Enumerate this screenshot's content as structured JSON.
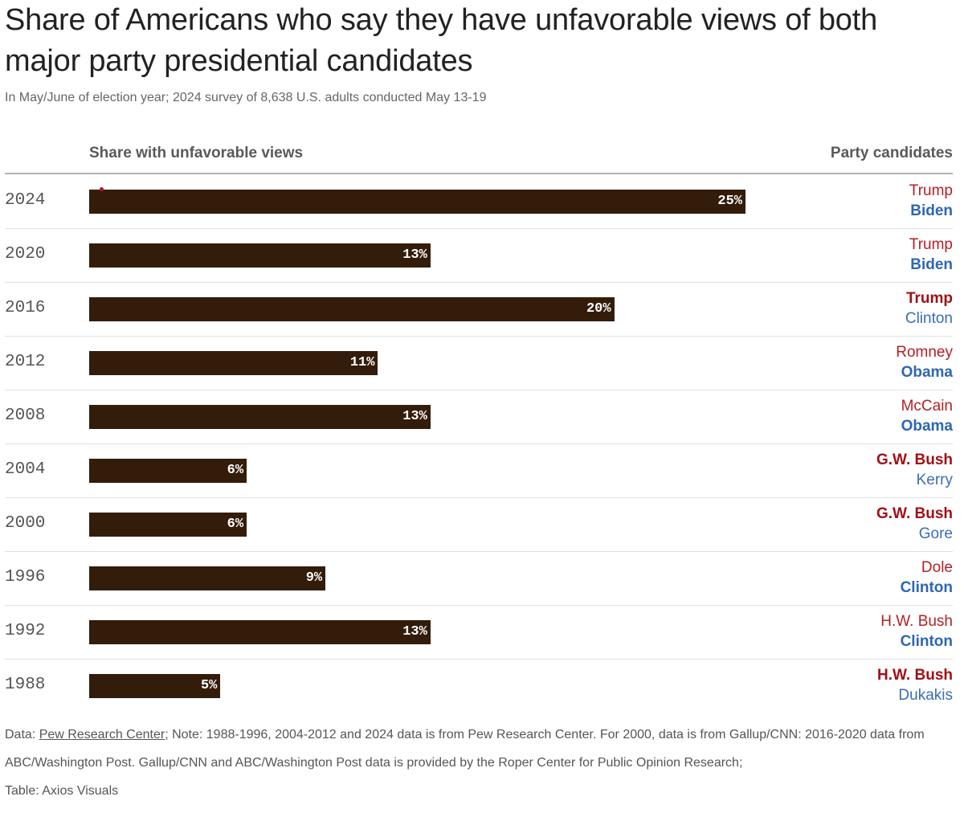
{
  "chart_data": {
    "type": "bar",
    "title": "Share of Americans who say they have unfavorable views of both major party presidential candidates",
    "subtitle": "In May/June of election year; 2024 survey of 8,638 U.S. adults conducted May 13-19",
    "xlabel": "Share with unfavorable views",
    "candidates_header": "Party candidates",
    "xlim": [
      0,
      30.6
    ],
    "categories": [
      "2024",
      "2020",
      "2016",
      "2012",
      "2008",
      "2004",
      "2000",
      "1996",
      "1992",
      "1988"
    ],
    "values": [
      25,
      13,
      20,
      11,
      13,
      6,
      6,
      9,
      13,
      5
    ],
    "labels": [
      "25%",
      "13%",
      "20%",
      "11%",
      "13%",
      "6%",
      "6%",
      "9%",
      "13%",
      "5%"
    ],
    "candidates": [
      {
        "rep": "Trump",
        "dem": "Biden",
        "winner": "dem"
      },
      {
        "rep": "Trump",
        "dem": "Biden",
        "winner": "dem"
      },
      {
        "rep": "Trump",
        "dem": "Clinton",
        "winner": "rep"
      },
      {
        "rep": "Romney",
        "dem": "Obama",
        "winner": "dem"
      },
      {
        "rep": "McCain",
        "dem": "Obama",
        "winner": "dem"
      },
      {
        "rep": "G.W. Bush",
        "dem": "Kerry",
        "winner": "rep"
      },
      {
        "rep": "G.W. Bush",
        "dem": "Gore",
        "winner": "rep"
      },
      {
        "rep": "Dole",
        "dem": "Clinton",
        "winner": "dem"
      },
      {
        "rep": "H.W. Bush",
        "dem": "Clinton",
        "winner": "dem"
      },
      {
        "rep": "H.W. Bush",
        "dem": "Dukakis",
        "winner": "rep"
      }
    ],
    "colors": {
      "bar": "#331c0a",
      "republican": "#b32025",
      "democrat": "#3b6db4"
    }
  },
  "footer": {
    "data_prefix": "Data: ",
    "source_link": "Pew Research Center",
    "note": "; Note: 1988-1996, 2004-2012 and 2024 data is from Pew Research Center. For 2000, data is from Gallup/CNN: 2016-2020 data from ABC/Washington Post. Gallup/CNN and ABC/Washington Post data is provided by the Roper Center for Public Opinion Research;",
    "credit": "Table: Axios Visuals"
  }
}
